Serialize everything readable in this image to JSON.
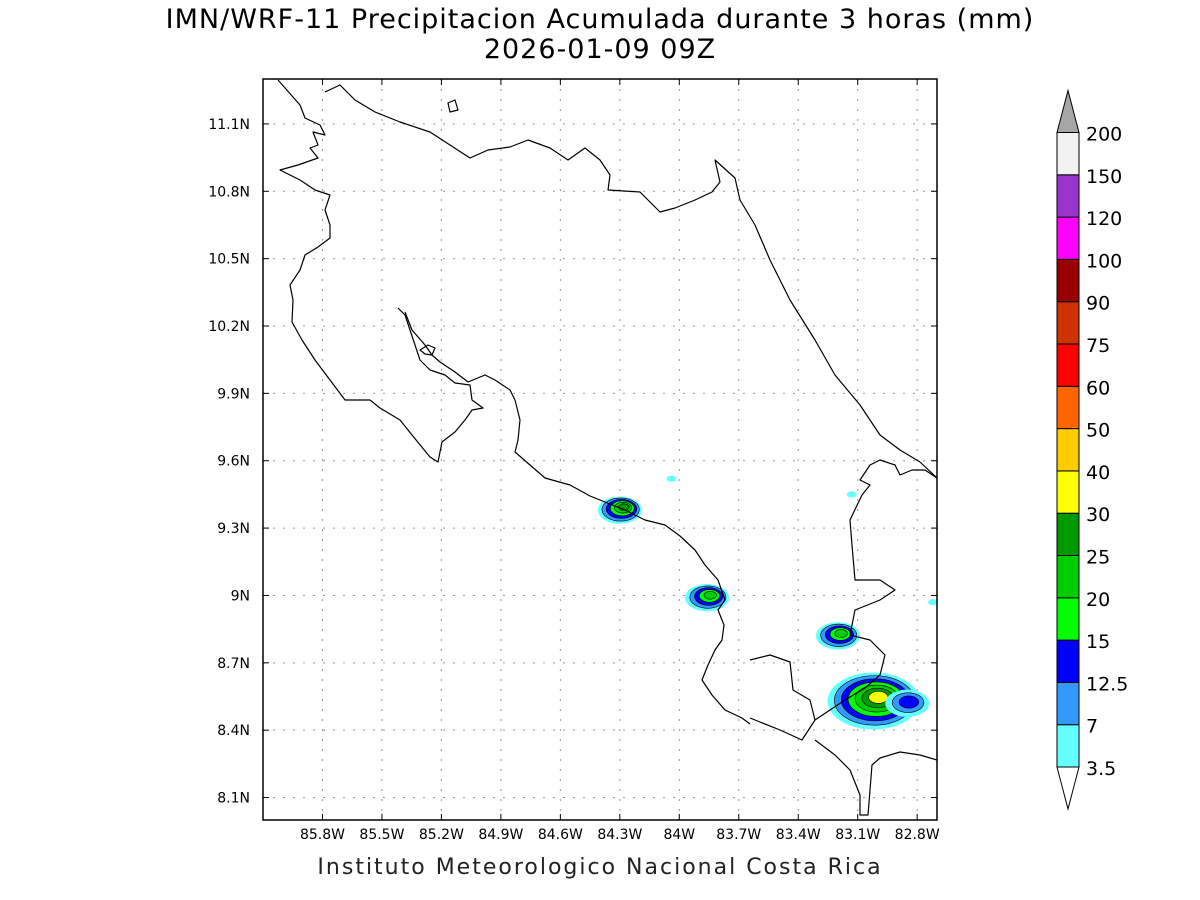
{
  "title": {
    "line1": "IMN/WRF-11 Precipitacion Acumulada durante 3 horas (mm)",
    "line2": "2026-01-09 09Z"
  },
  "credit": "Instituto Meteorologico Nacional Costa Rica",
  "map": {
    "lon_range": [
      -86.1,
      -82.7
    ],
    "lat_range": [
      8.0,
      11.3
    ],
    "lon_ticks": [
      {
        "value": -85.8,
        "label": "85.8W"
      },
      {
        "value": -85.5,
        "label": "85.5W"
      },
      {
        "value": -85.2,
        "label": "85.2W"
      },
      {
        "value": -84.9,
        "label": "84.9W"
      },
      {
        "value": -84.6,
        "label": "84.6W"
      },
      {
        "value": -84.3,
        "label": "84.3W"
      },
      {
        "value": -84.0,
        "label": "84W"
      },
      {
        "value": -83.7,
        "label": "83.7W"
      },
      {
        "value": -83.4,
        "label": "83.4W"
      },
      {
        "value": -83.1,
        "label": "83.1W"
      },
      {
        "value": -82.8,
        "label": "82.8W"
      }
    ],
    "lat_ticks": [
      {
        "value": 8.1,
        "label": "8.1N"
      },
      {
        "value": 8.4,
        "label": "8.4N"
      },
      {
        "value": 8.7,
        "label": "8.7N"
      },
      {
        "value": 9.0,
        "label": "9N"
      },
      {
        "value": 9.3,
        "label": "9.3N"
      },
      {
        "value": 9.6,
        "label": "9.6N"
      },
      {
        "value": 9.9,
        "label": "9.9N"
      },
      {
        "value": 10.2,
        "label": "10.2N"
      },
      {
        "value": 10.5,
        "label": "10.5N"
      },
      {
        "value": 10.8,
        "label": "10.8N"
      },
      {
        "value": 11.1,
        "label": "11.1N"
      }
    ],
    "grid": true,
    "grid_style": "dotted",
    "colors": {
      "3.5": "#66ffff",
      "7": "#3399ff",
      "12.5": "#0000ff",
      "15": "#00ff00",
      "20": "#00cc00",
      "25": "#009900",
      "30": "#ffff00",
      "outline": "#000000"
    },
    "precip_cells": [
      {
        "name": "san-ramon-cell",
        "lon": -84.3,
        "lat": 9.38,
        "peak_level": "25"
      },
      {
        "name": "caribbean-speck-1",
        "lon": -84.04,
        "lat": 9.52,
        "peak_level": "3.5"
      },
      {
        "name": "caribbean-speck-2",
        "lon": -83.13,
        "lat": 9.45,
        "peak_level": "3.5"
      },
      {
        "name": "talamanca-cell-west",
        "lon": -83.86,
        "lat": 8.99,
        "peak_level": "20"
      },
      {
        "name": "talamanca-cell-east",
        "lon": -83.2,
        "lat": 8.82,
        "peak_level": "20"
      },
      {
        "name": "golfito-cluster",
        "lon": -83.02,
        "lat": 8.53,
        "peak_level": "30"
      },
      {
        "name": "burica-cell",
        "lon": -82.85,
        "lat": 8.52,
        "peak_level": "12.5"
      },
      {
        "name": "panama-speck",
        "lon": -82.72,
        "lat": 8.97,
        "peak_level": "3.5"
      }
    ]
  },
  "colorbar": {
    "levels": [
      "3.5",
      "7",
      "12.5",
      "15",
      "20",
      "25",
      "30",
      "40",
      "50",
      "60",
      "75",
      "90",
      "100",
      "120",
      "150",
      "200"
    ],
    "colors": [
      "#66ffff",
      "#3399ff",
      "#0000ff",
      "#00ff00",
      "#00cc00",
      "#009900",
      "#ffff00",
      "#ffcc00",
      "#ff6600",
      "#ff0000",
      "#cc3300",
      "#990000",
      "#ff00ff",
      "#9933cc",
      "#f2f2f2"
    ],
    "min_triangle_color": "#ffffff",
    "max_triangle_color": "#a6a6a6"
  }
}
